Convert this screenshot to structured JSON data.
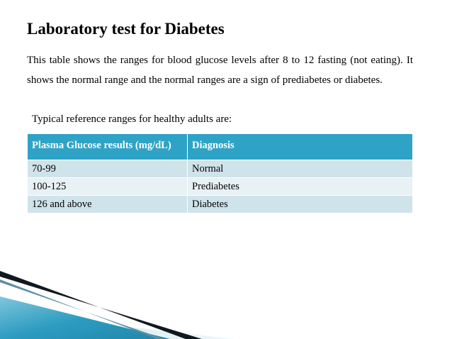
{
  "slide": {
    "title": "Laboratory test for Diabetes",
    "intro": "This table shows the ranges for blood glucose levels after 8 to 12 fasting (not eating). It shows the normal range and the normal ranges are a sign of prediabetes or diabetes.",
    "subtitle": "Typical reference ranges for healthy adults are:"
  },
  "table": {
    "headers": [
      "Plasma Glucose results (mg/dL)",
      "Diagnosis"
    ],
    "rows": [
      [
        "70-99",
        "Normal"
      ],
      [
        "100-125",
        "Prediabetes"
      ],
      [
        "126 and above",
        "Diabetes"
      ]
    ]
  },
  "colors": {
    "header_bg": "#2fa3c6",
    "row_dark": "#cfe3ea",
    "row_light": "#e8f1f4",
    "accent_blue": "#1f86ab",
    "accent_dark": "#101820"
  }
}
